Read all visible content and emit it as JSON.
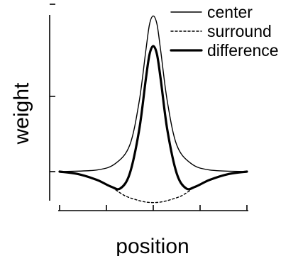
{
  "chart_data": {
    "type": "line",
    "title": "",
    "xlabel": "position",
    "ylabel": "weight",
    "xlim": [
      -1.7,
      1.7
    ],
    "ylim": [
      -0.28,
      1.0
    ],
    "x_ticks": [
      -1.0,
      -0.5,
      0.0,
      0.5,
      1.0
    ],
    "y_ticks": [
      0.0,
      0.45,
      1.0
    ],
    "legend_position": "top-right",
    "series": [
      {
        "name": "center",
        "style": "thin-solid",
        "x": [
          -1.0,
          -0.6,
          -0.4,
          -0.25,
          -0.15,
          -0.08,
          -0.04,
          0.0,
          0.04,
          0.08,
          0.15,
          0.25,
          0.4,
          0.6,
          1.0
        ],
        "y": [
          0.0,
          0.01,
          0.05,
          0.16,
          0.42,
          0.72,
          0.88,
          0.93,
          0.88,
          0.72,
          0.42,
          0.16,
          0.05,
          0.01,
          0.0
        ]
      },
      {
        "name": "surround",
        "style": "dotted",
        "x": [
          -0.4,
          -0.3,
          -0.2,
          -0.1,
          0.0,
          0.1,
          0.2,
          0.3,
          0.4
        ],
        "y": [
          -0.11,
          -0.145,
          -0.165,
          -0.18,
          -0.185,
          -0.18,
          -0.165,
          -0.145,
          -0.11
        ]
      },
      {
        "name": "difference",
        "style": "thick-solid",
        "x": [
          -1.0,
          -0.8,
          -0.6,
          -0.45,
          -0.35,
          -0.25,
          -0.15,
          -0.08,
          -0.04,
          0.0,
          0.04,
          0.08,
          0.15,
          0.25,
          0.35,
          0.45,
          0.6,
          0.8,
          1.0
        ],
        "y": [
          0.0,
          -0.015,
          -0.05,
          -0.09,
          -0.1,
          -0.01,
          0.25,
          0.55,
          0.7,
          0.75,
          0.7,
          0.55,
          0.25,
          -0.01,
          -0.1,
          -0.09,
          -0.05,
          -0.015,
          0.0
        ]
      }
    ]
  }
}
